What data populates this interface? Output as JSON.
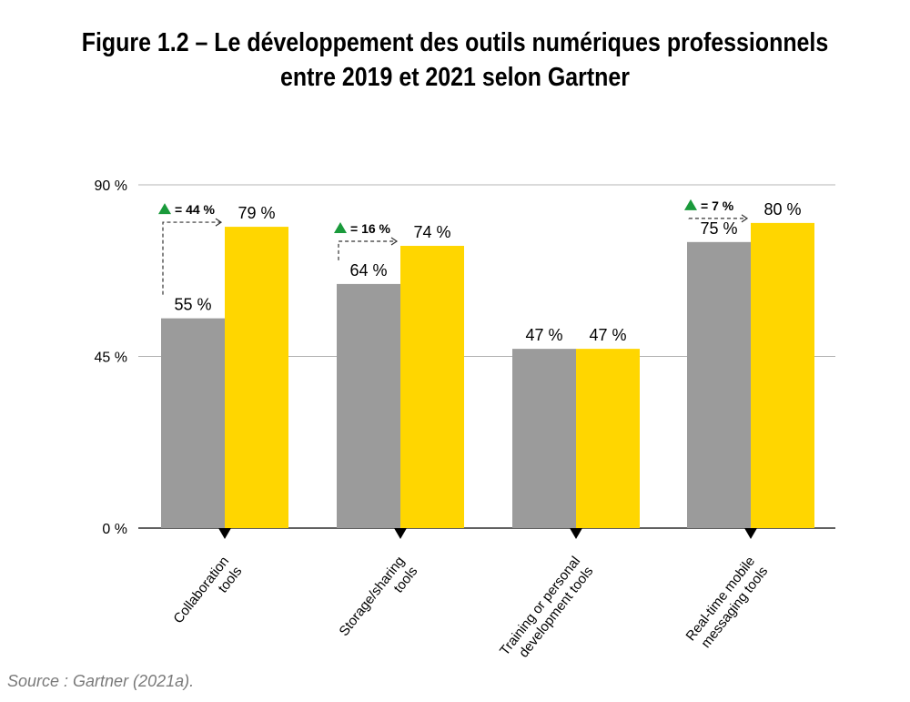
{
  "title": {
    "line1": "Figure 1.2 – Le développement des outils numériques professionnels",
    "line2": "entre 2019 et 2021 selon Gartner"
  },
  "source": "Source : Gartner (2021a).",
  "chart_data": {
    "type": "bar",
    "title": "Figure 1.2 – Le développement des outils numériques professionnels entre 2019 et 2021 selon Gartner",
    "categories": [
      [
        "Collaboration",
        "tools"
      ],
      [
        "Storage/sharing",
        "tools"
      ],
      [
        "Training or personal",
        "development tools"
      ],
      [
        "Real-time mobile",
        "messaging tools"
      ]
    ],
    "series": [
      {
        "values": [
          55,
          64,
          47,
          75
        ],
        "labels": [
          "55 %",
          "64 %",
          "47 %",
          "75 %"
        ],
        "color": "#9b9b9b"
      },
      {
        "values": [
          79,
          74,
          47,
          80
        ],
        "labels": [
          "79 %",
          "74 %",
          "47 %",
          "80 %"
        ],
        "color": "#ffd600"
      }
    ],
    "changes": [
      {
        "category_index": 0,
        "label": "= 44 %"
      },
      {
        "category_index": 1,
        "label": "= 16 %"
      },
      {
        "category_index": 3,
        "label": "= 7 %"
      }
    ],
    "change_marker_color": "#1a9a3b",
    "ytick_labels": [
      "0 %",
      "45 %",
      "90 %"
    ],
    "yticks": [
      0,
      45,
      90
    ],
    "ylim": [
      0,
      90
    ],
    "grid": true,
    "xlabel": "",
    "ylabel": ""
  }
}
